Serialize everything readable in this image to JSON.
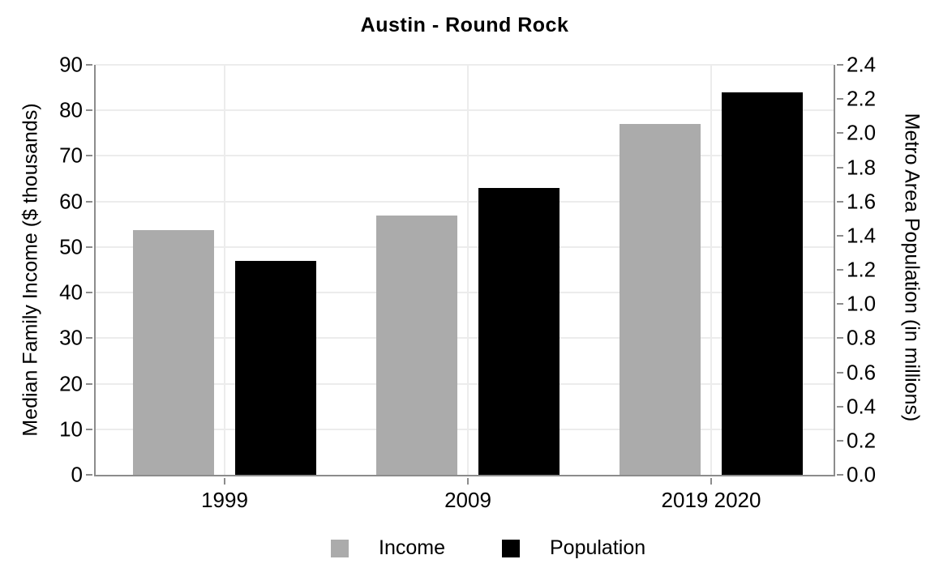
{
  "chart_data": {
    "type": "bar",
    "title": "Austin - Round Rock",
    "categories": [
      "1999",
      "2009",
      "2019 2020"
    ],
    "series": [
      {
        "name": "Income",
        "axis": "left",
        "color": "#ababab",
        "values": [
          53.8,
          57.0,
          77.0
        ]
      },
      {
        "name": "Population",
        "axis": "right",
        "color": "#000000",
        "values": [
          1.25,
          1.68,
          2.24
        ]
      }
    ],
    "left_axis": {
      "label": "Median Family Income ($ thousands)",
      "min": 0,
      "max": 90,
      "ticks": [
        "0",
        "10",
        "20",
        "30",
        "40",
        "50",
        "60",
        "70",
        "80",
        "90"
      ]
    },
    "right_axis": {
      "label": "Metro Area Population (in millions)",
      "min": 0,
      "max": 2.4,
      "ticks": [
        "0.0",
        "0.2",
        "0.4",
        "0.6",
        "0.8",
        "1.0",
        "1.2",
        "1.4",
        "1.6",
        "1.8",
        "2.0",
        "2.2",
        "2.4"
      ]
    },
    "legend": {
      "position": "bottom",
      "entries": [
        {
          "label": "Income",
          "color": "#ababab"
        },
        {
          "label": "Population",
          "color": "#000000"
        }
      ]
    },
    "grid": true
  },
  "colors": {
    "background": "#ffffff",
    "gridline": "#ececec",
    "axis_line": "#8c8c8c",
    "text": "#000000"
  }
}
